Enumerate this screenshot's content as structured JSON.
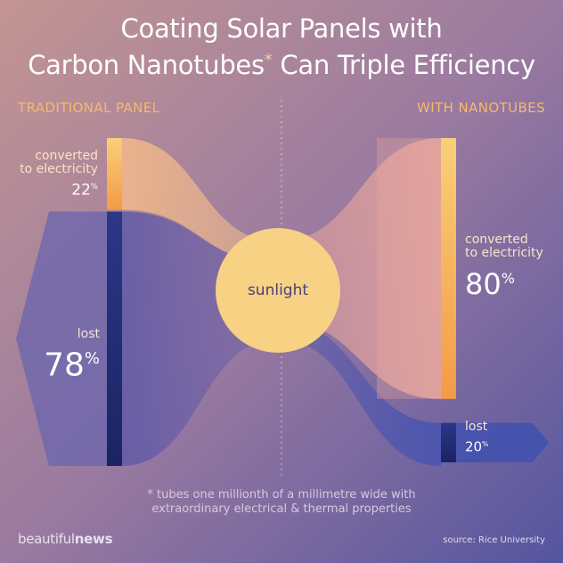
{
  "title_line1": "Coating Solar Panels with",
  "title_line2_pre": "Carbon Nanotubes",
  "title_asterisk": "*",
  "title_line2_post": " Can Triple Efficiency",
  "left_heading": "TRADITIONAL PANEL",
  "right_heading": "WITH NANOTUBES",
  "center_label": "sunlight",
  "footnote_line1": "* tubes one millionth of a millimetre wide with",
  "footnote_line2": "extraordinary electrical & thermal properties",
  "brand_light": "beautiful",
  "brand_bold": "news",
  "source": "source: Rice University",
  "percent_symbol": "%",
  "labels": {
    "converted_line1": "converted",
    "converted_line2": "to electricity",
    "lost": "lost"
  },
  "chart_data": {
    "type": "sankey",
    "source_node": "sunlight",
    "panels": [
      {
        "name": "TRADITIONAL PANEL",
        "flows": [
          {
            "label": "converted to electricity",
            "value": 22
          },
          {
            "label": "lost",
            "value": 78
          }
        ]
      },
      {
        "name": "WITH NANOTUBES",
        "flows": [
          {
            "label": "converted to electricity",
            "value": 80
          },
          {
            "label": "lost",
            "value": 20
          }
        ]
      }
    ]
  },
  "colors": {
    "bg_top_left": "#c08f8c",
    "bg_bottom_right": "#5a559e",
    "converted": "#f6b45e",
    "lost": "#26307a",
    "sun": "#f7d184",
    "sun_text": "#4a3f7d",
    "heading": "#f6b96c"
  }
}
